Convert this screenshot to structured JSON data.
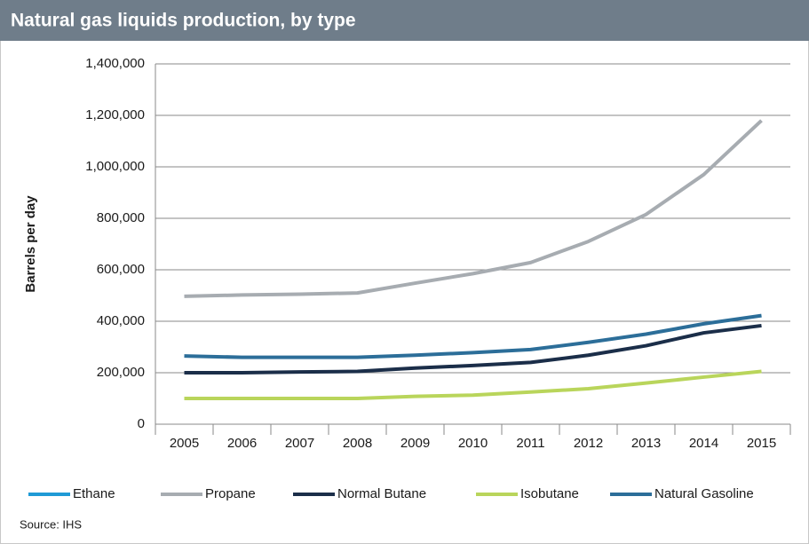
{
  "chart_data": {
    "type": "line",
    "title": "Natural gas liquids production, by type",
    "y_label": "Barrels per day",
    "source": "Source: IHS",
    "categories": [
      "2005",
      "2006",
      "2007",
      "2008",
      "2009",
      "2010",
      "2011",
      "2012",
      "2013",
      "2014",
      "2015"
    ],
    "series": [
      {
        "name": "Ethane",
        "color": "#1f9ad6",
        "values": [
          null,
          null,
          null,
          null,
          null,
          null,
          null,
          null,
          null,
          null,
          null
        ]
      },
      {
        "name": "Propane",
        "color": "#a7acb1",
        "values": [
          497000,
          502000,
          505000,
          510000,
          548000,
          585000,
          628000,
          710000,
          815000,
          970000,
          1180000
        ]
      },
      {
        "name": "Normal Butane",
        "color": "#1b2e49",
        "values": [
          200000,
          200000,
          203000,
          205000,
          218000,
          228000,
          240000,
          268000,
          305000,
          355000,
          383000
        ]
      },
      {
        "name": "Isobutane",
        "color": "#b9d55b",
        "values": [
          100000,
          100000,
          100000,
          100000,
          108000,
          113000,
          125000,
          138000,
          160000,
          183000,
          205000
        ]
      },
      {
        "name": "Natural Gasoline",
        "color": "#2c6e99",
        "values": [
          265000,
          260000,
          260000,
          260000,
          268000,
          278000,
          290000,
          318000,
          350000,
          390000,
          422000
        ]
      }
    ],
    "ylim": [
      0,
      1400000
    ],
    "yticks": [
      0,
      {
        "value": 200000,
        "label": "200,000"
      },
      {
        "value": 400000,
        "label": "400,000"
      },
      {
        "value": 600000,
        "label": "600,000"
      },
      {
        "value": 800000,
        "label": "800,000"
      },
      {
        "value": 1000000,
        "label": "1,000,000"
      },
      {
        "value": 1200000,
        "label": "1,200,000"
      },
      {
        "value": 1400000,
        "label": "1,400,000"
      }
    ],
    "grid": true,
    "legend": "bottom"
  }
}
